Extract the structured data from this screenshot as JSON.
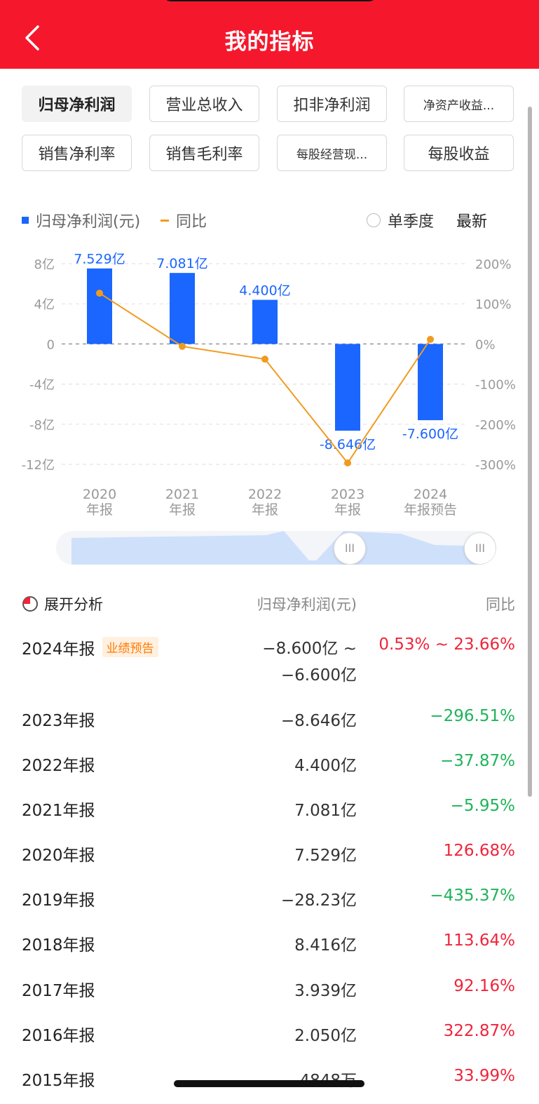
{
  "header": {
    "title": "我的指标"
  },
  "tabs": [
    {
      "label": "归母净利润",
      "active": true
    },
    {
      "label": "营业总收入"
    },
    {
      "label": "扣非净利润"
    },
    {
      "label": "净资产收益..."
    },
    {
      "label": "销售净利率"
    },
    {
      "label": "销售毛利率"
    },
    {
      "label": "每股经营现..."
    },
    {
      "label": "每股收益"
    }
  ],
  "legend": {
    "bar_label": "归母净利润(元)",
    "line_label": "同比",
    "quarter_option": "单季度",
    "latest_label": "最新"
  },
  "colors": {
    "accent": "#f5182d",
    "bar": "#1a66ff",
    "line": "#f19a1f",
    "up": "#f0243a",
    "down": "#1fb35a"
  },
  "chart_data": {
    "type": "bar",
    "categories": [
      [
        "2020",
        "年报"
      ],
      [
        "2021",
        "年报"
      ],
      [
        "2022",
        "年报"
      ],
      [
        "2023",
        "年报"
      ],
      [
        "2024",
        "年报预告"
      ]
    ],
    "series": [
      {
        "name": "归母净利润(元)",
        "type": "bar",
        "axis": "left",
        "values": [
          7.529,
          7.081,
          4.4,
          -8.646,
          -7.6
        ],
        "labels": [
          "7.529亿",
          "7.081亿",
          "4.400亿",
          "-8.646亿",
          "-7.600亿"
        ]
      },
      {
        "name": "同比",
        "type": "line",
        "axis": "right",
        "values": [
          126.68,
          -5.95,
          -37.87,
          -296.51,
          11.4
        ]
      }
    ],
    "y_left": {
      "ticks": [
        8,
        4,
        0,
        -4,
        -8,
        -12
      ],
      "tick_labels": [
        "8亿",
        "4亿",
        "0",
        "-4亿",
        "-8亿",
        "-12亿"
      ],
      "range": [
        -12,
        8
      ]
    },
    "y_right": {
      "ticks": [
        200,
        100,
        0,
        -100,
        -200,
        -300
      ],
      "tick_labels": [
        "200%",
        "100%",
        "0%",
        "-100%",
        "-200%",
        "-300%"
      ],
      "range": [
        -300,
        200
      ]
    },
    "grid": true,
    "legend_position": "top-left"
  },
  "section": {
    "expand_label": "展开分析",
    "col_value": "归母净利润(元)",
    "col_yoy": "同比"
  },
  "table": [
    {
      "year": "2024年报",
      "badge": "业绩预告",
      "value_line1": "−8.600亿 ~",
      "value_line2": "−6.600亿",
      "yoy": "0.53% ~ 23.66%",
      "dir": "up"
    },
    {
      "year": "2023年报",
      "value": "−8.646亿",
      "yoy": "−296.51%",
      "dir": "down"
    },
    {
      "year": "2022年报",
      "value": "4.400亿",
      "yoy": "−37.87%",
      "dir": "down"
    },
    {
      "year": "2021年报",
      "value": "7.081亿",
      "yoy": "−5.95%",
      "dir": "down"
    },
    {
      "year": "2020年报",
      "value": "7.529亿",
      "yoy": "126.68%",
      "dir": "up"
    },
    {
      "year": "2019年报",
      "value": "−28.23亿",
      "yoy": "−435.37%",
      "dir": "down"
    },
    {
      "year": "2018年报",
      "value": "8.416亿",
      "yoy": "113.64%",
      "dir": "up"
    },
    {
      "year": "2017年报",
      "value": "3.939亿",
      "yoy": "92.16%",
      "dir": "up"
    },
    {
      "year": "2016年报",
      "value": "2.050亿",
      "yoy": "322.87%",
      "dir": "up"
    },
    {
      "year": "2015年报",
      "value": "4848万",
      "yoy": "33.99%",
      "dir": "up"
    }
  ]
}
